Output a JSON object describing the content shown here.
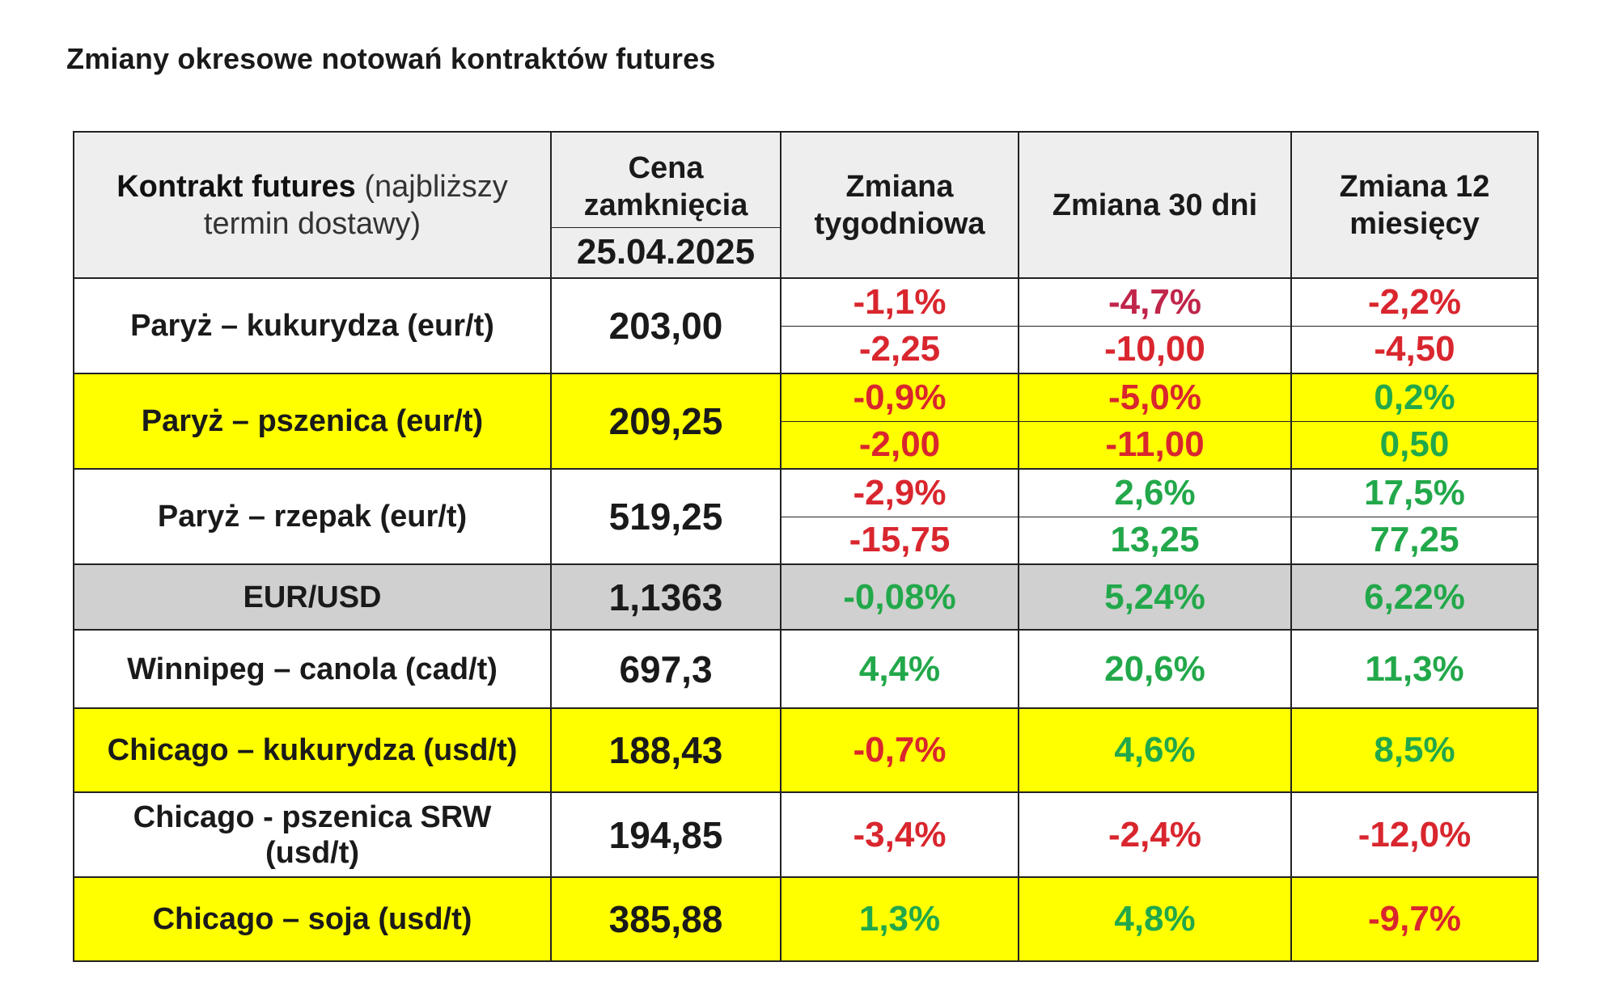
{
  "title": "Zmiany okresowe notowań kontraktów futures",
  "header": {
    "contract_bold": "Kontrakt futures",
    "contract_normal": " (najbliższy termin dostawy)",
    "price_label": "Cena zamknięcia",
    "price_date": "25.04.2025",
    "weekly": "Zmiana tygodniowa",
    "days30": "Zmiana 30 dni",
    "months12": "Zmiana 12 miesięcy"
  },
  "rows": [
    {
      "name": "Paryż – kukurydza  (eur/t)",
      "price": "203,00",
      "weekly_pct": "-1,1%",
      "weekly_abs": "-2,25",
      "d30_pct": "-4,7%",
      "d30_abs": "-10,00",
      "m12_pct": "-2,2%",
      "m12_abs": "-4,50"
    },
    {
      "name": "Paryż – pszenica (eur/t)",
      "price": "209,25",
      "weekly_pct": "-0,9%",
      "weekly_abs": "-2,00",
      "d30_pct": "-5,0%",
      "d30_abs": "-11,00",
      "m12_pct": "0,2%",
      "m12_abs": "0,50"
    },
    {
      "name": "Paryż – rzepak (eur/t)",
      "price": "519,25",
      "weekly_pct": "-2,9%",
      "weekly_abs": "-15,75",
      "d30_pct": "2,6%",
      "d30_abs": "13,25",
      "m12_pct": "17,5%",
      "m12_abs": "77,25"
    },
    {
      "name": "EUR/USD",
      "price": "1,1363",
      "weekly": "-0,08%",
      "d30": "5,24%",
      "m12": "6,22%"
    },
    {
      "name": "Winnipeg – canola (cad/t)",
      "price": "697,3",
      "weekly": "4,4%",
      "d30": "20,6%",
      "m12": "11,3%"
    },
    {
      "name": "Chicago – kukurydza (usd/t)",
      "price": "188,43",
      "weekly": "-0,7%",
      "d30": "4,6%",
      "m12": "8,5%"
    },
    {
      "name": "Chicago - pszenica SRW (usd/t)",
      "price": "194,85",
      "weekly": "-3,4%",
      "d30": "-2,4%",
      "m12": "-12,0%"
    },
    {
      "name": "Chicago – soja (usd/t)",
      "price": "385,88",
      "weekly": "1,3%",
      "d30": "4,8%",
      "m12": "-9,7%"
    }
  ],
  "colors": {
    "negative": "#d9262e",
    "negative_alt": "#c0254a",
    "positive": "#22a84a",
    "highlight": "#ffff00",
    "grey": "#d0d0d0",
    "header": "#eeeeee"
  }
}
